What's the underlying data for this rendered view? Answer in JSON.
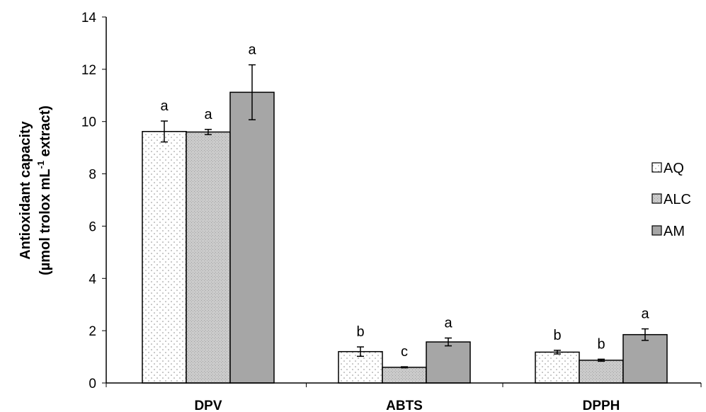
{
  "chart_data": {
    "type": "bar",
    "title": "",
    "xlabel": "",
    "ylabel_line1": "Antioxidant capacity",
    "ylabel_line2_prefix": "(µmol trolox mL",
    "ylabel_line2_sup": "-1",
    "ylabel_line2_suffix": " extract)",
    "ylim": [
      0,
      14
    ],
    "yticks": [
      "0",
      "2",
      "4",
      "6",
      "8",
      "10",
      "12",
      "14"
    ],
    "grid": false,
    "legend_position": "right",
    "categories": [
      "DPV",
      "ABTS",
      "DPPH"
    ],
    "series": [
      {
        "name": "AQ",
        "pattern": "dots",
        "fill": "#ffffff",
        "values": [
          9.62,
          1.2,
          1.18
        ],
        "errors": [
          0.4,
          0.18,
          0.07
        ],
        "labels": [
          "a",
          "b",
          "b"
        ]
      },
      {
        "name": "ALC",
        "pattern": "hatch",
        "fill": "#c8c8c8",
        "values": [
          9.6,
          0.6,
          0.87
        ],
        "errors": [
          0.1,
          0.02,
          0.04
        ],
        "labels": [
          "a",
          "c",
          "b"
        ]
      },
      {
        "name": "AM",
        "pattern": "solid",
        "fill": "#a6a6a6",
        "values": [
          11.12,
          1.57,
          1.85
        ],
        "errors": [
          1.05,
          0.15,
          0.22
        ],
        "labels": [
          "a",
          "a",
          "a"
        ]
      }
    ]
  }
}
